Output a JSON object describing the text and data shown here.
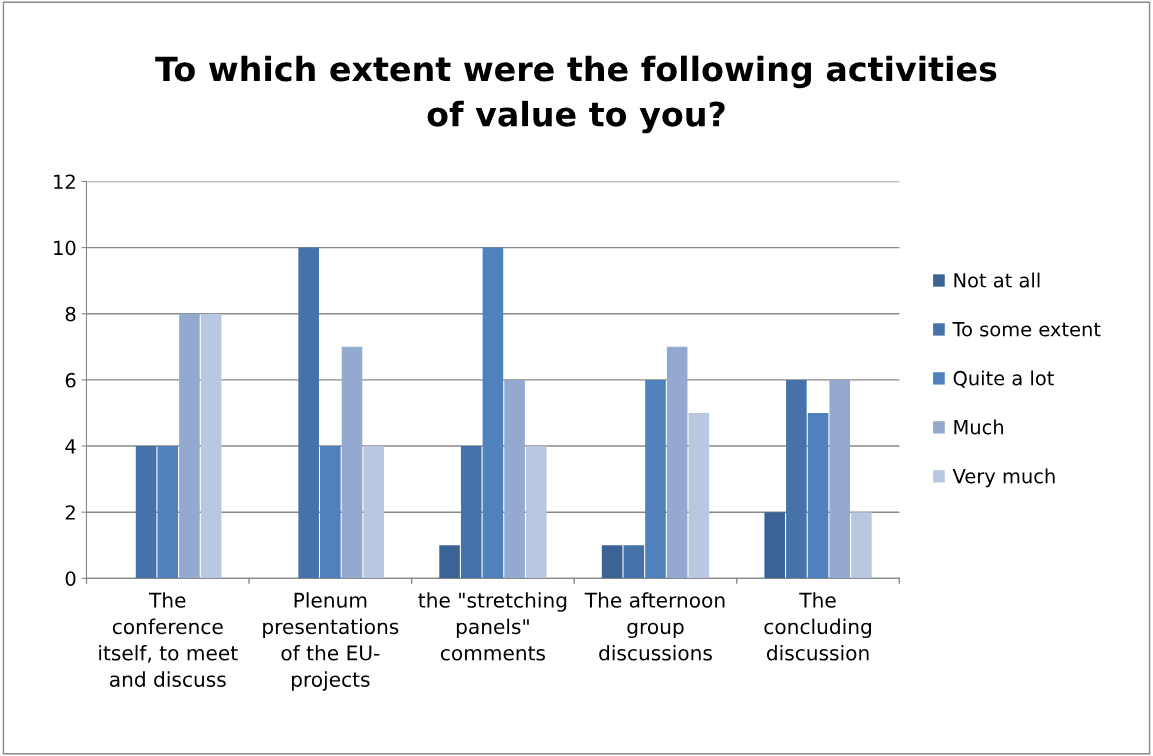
{
  "chart_data": {
    "type": "bar",
    "title": "To which extent were the following activities\nof value to you?",
    "categories": [
      "The\nconference\nitself, to meet\nand discuss",
      "Plenum\npresentations\nof the EU-\nprojects",
      "the \"stretching\npanels\"\ncomments",
      "The afternoon\ngroup\ndiscussions",
      "The\nconcluding\ndiscussion"
    ],
    "series": [
      {
        "name": "Not at all",
        "color": "#3c6395",
        "values": [
          0,
          0,
          1,
          1,
          2
        ]
      },
      {
        "name": "To some extent",
        "color": "#4672aa",
        "values": [
          4,
          10,
          4,
          1,
          6
        ]
      },
      {
        "name": "Quite a lot",
        "color": "#4f81bd",
        "values": [
          4,
          4,
          10,
          6,
          5
        ]
      },
      {
        "name": "Much",
        "color": "#93a9cf",
        "values": [
          8,
          7,
          6,
          7,
          6
        ]
      },
      {
        "name": "Very much",
        "color": "#b9c7e0",
        "values": [
          8,
          4,
          4,
          5,
          2
        ]
      }
    ],
    "ylim": [
      0,
      12
    ],
    "yticks": [
      0,
      2,
      4,
      6,
      8,
      10,
      12
    ],
    "grid": "y",
    "legend": "right"
  }
}
